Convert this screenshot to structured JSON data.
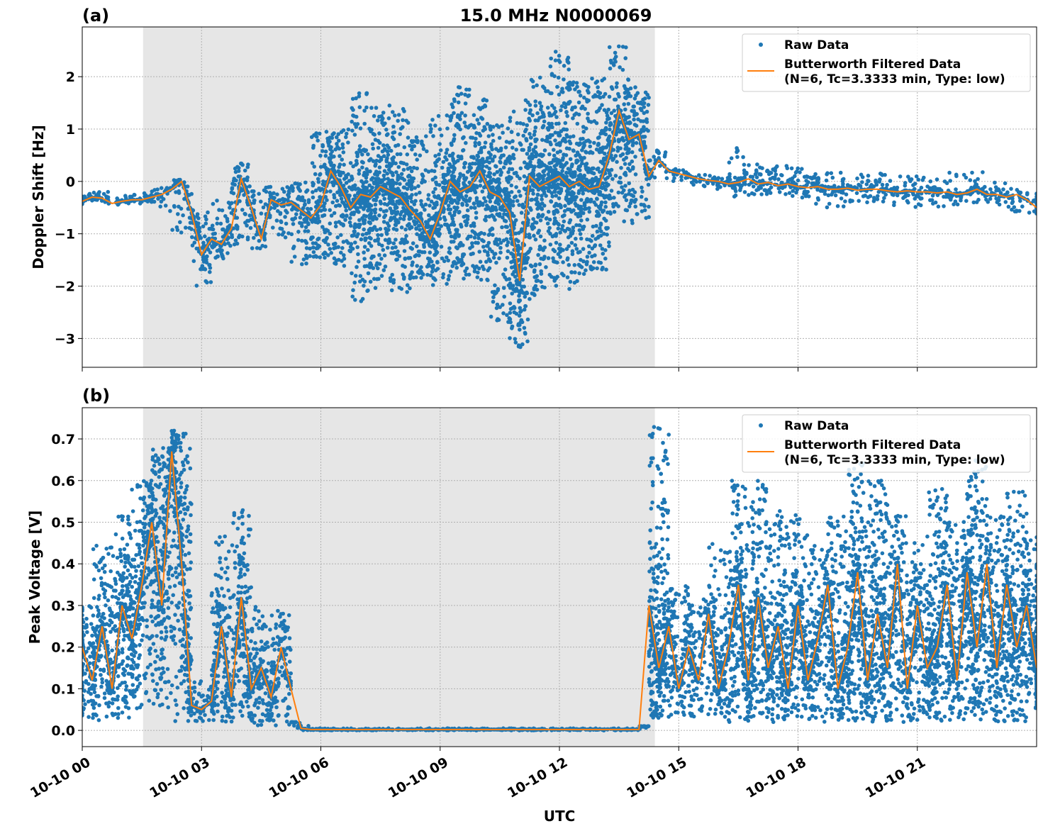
{
  "title": "15.0 MHz N0000069",
  "xlabel": "UTC",
  "colors": {
    "raw": "#1f77b4",
    "filtered": "#ff7f0e",
    "shade": "#e6e6e6"
  },
  "legend": {
    "raw": "Raw Data",
    "filtered_line1": "Butterworth Filtered Data",
    "filtered_line2": "(N=6, Tc=3.3333 min, Type: low)",
    "placement": "upper-right"
  },
  "chart_data": [
    {
      "type": "scatter+line",
      "panel_label": "(a)",
      "ylabel": "Doppler Shift [Hz]",
      "xlim_hours": [
        0,
        24
      ],
      "ylim": [
        -3.55,
        2.95
      ],
      "grid": true,
      "x_ticks": [
        {
          "h": 0,
          "label": "10-10 00"
        },
        {
          "h": 3,
          "label": "10-10 03"
        },
        {
          "h": 6,
          "label": "10-10 06"
        },
        {
          "h": 9,
          "label": "10-10 09"
        },
        {
          "h": 12,
          "label": "10-10 12"
        },
        {
          "h": 15,
          "label": "10-10 15"
        },
        {
          "h": 18,
          "label": "10-10 18"
        },
        {
          "h": 21,
          "label": "10-10 21"
        }
      ],
      "y_ticks": [
        {
          "v": 2,
          "label": "2"
        },
        {
          "v": 1,
          "label": "1"
        },
        {
          "v": 0,
          "label": "0"
        },
        {
          "v": -1,
          "label": "−1"
        },
        {
          "v": -2,
          "label": "−2"
        },
        {
          "v": -3,
          "label": "−3"
        }
      ],
      "shaded_span_hours": [
        1.53,
        14.4
      ],
      "raw_envelope": {
        "step_hours": 0.5,
        "lo": [
          -0.45,
          -0.45,
          -0.45,
          -0.45,
          -0.6,
          -1.0,
          -2.0,
          -1.5,
          -1.3,
          -1.3,
          -1.1,
          -1.6,
          -1.5,
          -1.7,
          -2.3,
          -2.1,
          -2.2,
          -1.9,
          -2.0,
          -1.9,
          -1.9,
          -2.7,
          -3.2,
          -2.2,
          -2.1,
          -2.2,
          -1.7,
          -0.8,
          -0.8,
          0.0,
          0.0,
          -0.1,
          -0.2,
          -0.3,
          -0.3,
          -0.3,
          -0.4,
          -0.5,
          -0.5,
          -0.4,
          -0.5,
          -0.5,
          -0.5,
          -0.5,
          -0.45,
          -0.5,
          -0.45,
          -0.6,
          -0.7
        ],
        "hi": [
          -0.2,
          -0.2,
          -0.25,
          -0.2,
          -0.1,
          0.05,
          -0.5,
          -0.3,
          0.35,
          -0.05,
          -0.1,
          0.0,
          1.0,
          1.0,
          1.7,
          1.5,
          1.4,
          0.9,
          1.4,
          1.9,
          1.6,
          1.1,
          1.6,
          2.0,
          2.5,
          1.9,
          2.0,
          2.6,
          1.8,
          0.6,
          0.25,
          0.15,
          0.2,
          0.7,
          0.4,
          0.3,
          0.35,
          0.2,
          0.2,
          0.15,
          0.15,
          0.1,
          0.1,
          0.05,
          0.2,
          0.25,
          0.0,
          -0.1,
          -0.2
        ]
      },
      "filtered": {
        "step_hours": 0.25,
        "values": [
          -0.38,
          -0.3,
          -0.32,
          -0.42,
          -0.38,
          -0.35,
          -0.35,
          -0.3,
          -0.25,
          -0.15,
          0.0,
          -0.6,
          -1.4,
          -1.1,
          -1.2,
          -0.9,
          0.05,
          -0.5,
          -1.1,
          -0.35,
          -0.45,
          -0.4,
          -0.55,
          -0.7,
          -0.45,
          0.2,
          -0.1,
          -0.5,
          -0.25,
          -0.3,
          -0.1,
          -0.2,
          -0.3,
          -0.55,
          -0.75,
          -1.1,
          -0.6,
          0.0,
          -0.2,
          -0.1,
          0.2,
          -0.2,
          -0.3,
          -0.6,
          -1.9,
          0.1,
          -0.1,
          0.0,
          0.1,
          -0.1,
          0.0,
          -0.15,
          -0.1,
          0.5,
          1.35,
          0.8,
          0.9,
          0.1,
          0.4,
          0.2,
          0.15,
          0.1,
          0.05,
          0.02,
          0.0,
          -0.05,
          -0.02,
          0.05,
          -0.05,
          -0.02,
          -0.08,
          -0.05,
          -0.1,
          -0.12,
          -0.1,
          -0.15,
          -0.15,
          -0.13,
          -0.17,
          -0.15,
          -0.15,
          -0.18,
          -0.2,
          -0.18,
          -0.2,
          -0.2,
          -0.22,
          -0.2,
          -0.25,
          -0.22,
          -0.15,
          -0.25,
          -0.25,
          -0.3,
          -0.25,
          -0.35,
          -0.5
        ]
      }
    },
    {
      "type": "scatter+line",
      "panel_label": "(b)",
      "ylabel": "Peak Voltage [V]",
      "xlim_hours": [
        0,
        24
      ],
      "ylim": [
        -0.039,
        0.775
      ],
      "grid": true,
      "y_ticks": [
        {
          "v": 0.0,
          "label": "0.0"
        },
        {
          "v": 0.1,
          "label": "0.1"
        },
        {
          "v": 0.2,
          "label": "0.2"
        },
        {
          "v": 0.3,
          "label": "0.3"
        },
        {
          "v": 0.4,
          "label": "0.4"
        },
        {
          "v": 0.5,
          "label": "0.5"
        },
        {
          "v": 0.6,
          "label": "0.6"
        },
        {
          "v": 0.7,
          "label": "0.7"
        }
      ],
      "shaded_span_hours": [
        1.53,
        14.4
      ],
      "raw_envelope": {
        "step_hours": 0.5,
        "lo": [
          0.03,
          0.02,
          0.03,
          0.05,
          0.05,
          0.02,
          0.02,
          0.02,
          0.02,
          0.01,
          0.01,
          0.0,
          0,
          0,
          0,
          0,
          0,
          0,
          0,
          0,
          0,
          0,
          0,
          0,
          0,
          0,
          0,
          0,
          0,
          0.03,
          0.03,
          0.03,
          0.03,
          0.02,
          0.03,
          0.02,
          0.03,
          0.02,
          0.02,
          0.02,
          0.02,
          0.02,
          0.02,
          0.02,
          0.02,
          0.02,
          0.02,
          0.02,
          0.05
        ],
        "hi": [
          0.3,
          0.45,
          0.52,
          0.6,
          0.68,
          0.72,
          0.12,
          0.48,
          0.54,
          0.3,
          0.29,
          0.02,
          0.005,
          0.005,
          0.005,
          0.005,
          0.005,
          0.005,
          0.005,
          0.005,
          0.005,
          0.005,
          0.005,
          0.005,
          0.005,
          0.005,
          0.005,
          0.005,
          0.01,
          0.74,
          0.35,
          0.32,
          0.45,
          0.6,
          0.6,
          0.55,
          0.52,
          0.45,
          0.52,
          0.65,
          0.6,
          0.52,
          0.45,
          0.58,
          0.52,
          0.67,
          0.52,
          0.58,
          0.48
        ]
      },
      "filtered": {
        "step_hours": 0.25,
        "values": [
          0.2,
          0.12,
          0.25,
          0.1,
          0.3,
          0.22,
          0.35,
          0.5,
          0.3,
          0.67,
          0.4,
          0.06,
          0.05,
          0.07,
          0.25,
          0.08,
          0.32,
          0.1,
          0.15,
          0.08,
          0.2,
          0.1,
          0.005,
          0.002,
          0.002,
          0.002,
          0.002,
          0.002,
          0.002,
          0.002,
          0.002,
          0.002,
          0.002,
          0.002,
          0.002,
          0.002,
          0.002,
          0.002,
          0.002,
          0.002,
          0.002,
          0.002,
          0.002,
          0.002,
          0.002,
          0.002,
          0.002,
          0.002,
          0.002,
          0.002,
          0.002,
          0.002,
          0.002,
          0.002,
          0.002,
          0.002,
          0.002,
          0.3,
          0.15,
          0.25,
          0.1,
          0.2,
          0.12,
          0.28,
          0.1,
          0.2,
          0.35,
          0.12,
          0.32,
          0.15,
          0.25,
          0.1,
          0.3,
          0.12,
          0.22,
          0.35,
          0.1,
          0.2,
          0.38,
          0.12,
          0.28,
          0.15,
          0.4,
          0.1,
          0.3,
          0.15,
          0.2,
          0.35,
          0.12,
          0.38,
          0.2,
          0.4,
          0.15,
          0.35,
          0.2,
          0.3,
          0.15
        ]
      }
    }
  ]
}
